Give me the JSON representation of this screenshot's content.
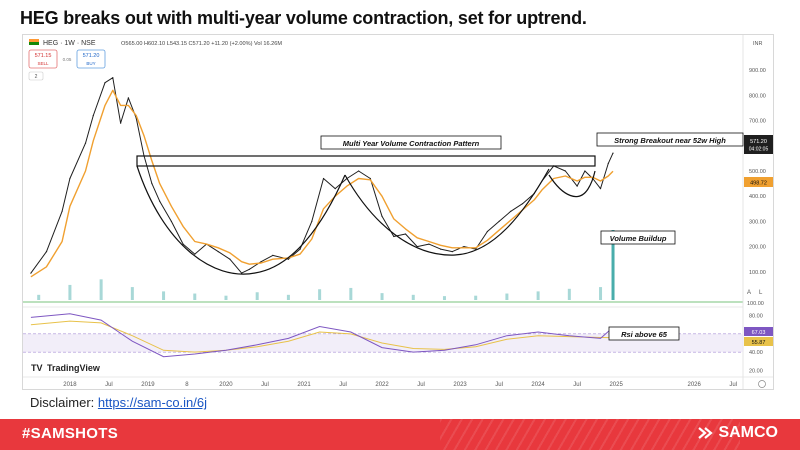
{
  "headline": "HEG breaks out with multi-year volume contraction, set for uptrend.",
  "disclaimer": {
    "label": "Disclaimer:",
    "link_text": "https://sam-co.in/6j"
  },
  "footer": {
    "hashtag": "#SAMSHOTS",
    "brand": "SAMCO"
  },
  "colors": {
    "price_line": "#1f1f1f",
    "ema": "#f0a030",
    "volume": "#3fa9a6",
    "rsi": "#7e57c2",
    "rsi_ma": "#e8c24a",
    "footer": "#e8383d",
    "ema_badge": "#f0a030",
    "rsi_badge": "#7e57c2"
  },
  "chart_data": {
    "type": "line",
    "symbol": "HEG · 1W · NSE",
    "ohlc_text": "O565.00 H602.10 L543.15 C571.20 +11.20 (+2.00%) Vol 16.26M",
    "sell_price": "571.15",
    "sell_label": "SELL",
    "spread": "0.05",
    "buy_price": "571.20",
    "buy_label": "BUY",
    "indicator_count": "2",
    "currency": "INR",
    "x_ticks": [
      "2018",
      "Jul",
      "2019",
      "8",
      "2020",
      "Jul",
      "2021",
      "Jul",
      "2022",
      "Jul",
      "2023",
      "Jul",
      "2024",
      "Jul",
      "2025",
      "2026",
      "Jul"
    ],
    "y_ticks": [
      "900.00",
      "800.00",
      "700.00",
      "600.00",
      "500.00",
      "400.00",
      "300.00",
      "200.00",
      "100.00"
    ],
    "ylim": [
      0,
      960
    ],
    "x": [
      2017.5,
      2017.7,
      2017.9,
      2018.0,
      2018.2,
      2018.3,
      2018.45,
      2018.55,
      2018.65,
      2018.75,
      2018.85,
      2018.95,
      2019.05,
      2019.15,
      2019.3,
      2019.45,
      2019.6,
      2019.75,
      2019.9,
      2020.05,
      2020.2,
      2020.3,
      2020.45,
      2020.6,
      2020.8,
      2020.95,
      2021.1,
      2021.25,
      2021.4,
      2021.55,
      2021.7,
      2021.85,
      2022.0,
      2022.15,
      2022.3,
      2022.45,
      2022.6,
      2022.75,
      2022.9,
      2023.05,
      2023.2,
      2023.35,
      2023.5,
      2023.65,
      2023.8,
      2023.95,
      2024.05,
      2024.2,
      2024.35,
      2024.5,
      2024.6,
      2024.7,
      2024.8,
      2024.9,
      2024.96
    ],
    "series": [
      {
        "values": [
          95,
          180,
          340,
          470,
          610,
          720,
          850,
          870,
          690,
          790,
          710,
          560,
          450,
          380,
          300,
          210,
          170,
          210,
          180,
          150,
          95,
          110,
          140,
          165,
          150,
          190,
          300,
          470,
          430,
          470,
          500,
          470,
          320,
          240,
          250,
          200,
          210,
          190,
          180,
          200,
          190,
          260,
          300,
          340,
          370,
          410,
          460,
          520,
          500,
          440,
          500,
          470,
          430,
          530,
          571
        ]
      },
      {
        "values": [
          80,
          120,
          220,
          360,
          500,
          620,
          760,
          820,
          760,
          760,
          720,
          640,
          540,
          450,
          360,
          280,
          220,
          210,
          195,
          175,
          140,
          130,
          135,
          150,
          155,
          170,
          230,
          350,
          400,
          440,
          470,
          465,
          400,
          310,
          270,
          235,
          220,
          205,
          195,
          195,
          195,
          225,
          265,
          305,
          345,
          385,
          425,
          470,
          480,
          460,
          475,
          475,
          460,
          480,
          499
        ]
      }
    ],
    "volume": {
      "x": [
        2017.6,
        2018.0,
        2018.4,
        2018.8,
        2019.2,
        2019.6,
        2020.0,
        2020.4,
        2020.8,
        2021.2,
        2021.6,
        2022.0,
        2022.4,
        2022.8,
        2023.2,
        2023.6,
        2024.0,
        2024.4,
        2024.8,
        2024.96
      ],
      "values": [
        1.2,
        3.5,
        4.8,
        3.0,
        2.0,
        1.5,
        1.0,
        1.8,
        1.2,
        2.5,
        2.8,
        1.6,
        1.2,
        0.9,
        1.0,
        1.5,
        2.0,
        2.6,
        3.0,
        16.26
      ]
    },
    "rsi": {
      "y_ticks": [
        "80.00",
        "60.00",
        "40.00",
        "20.00"
      ],
      "band": [
        40,
        60
      ],
      "x": [
        2017.5,
        2018.0,
        2018.4,
        2018.8,
        2019.2,
        2019.6,
        2020.0,
        2020.4,
        2020.8,
        2021.2,
        2021.6,
        2022.0,
        2022.4,
        2022.8,
        2023.2,
        2023.6,
        2024.0,
        2024.4,
        2024.8,
        2024.96
      ],
      "values": [
        78,
        82,
        75,
        52,
        35,
        38,
        42,
        48,
        55,
        68,
        62,
        45,
        40,
        42,
        48,
        58,
        62,
        58,
        55,
        67.03
      ],
      "ma": [
        70,
        74,
        72,
        58,
        42,
        40,
        42,
        46,
        52,
        62,
        60,
        50,
        44,
        43,
        46,
        54,
        58,
        57,
        56,
        55.87
      ]
    },
    "price_badge": "571.20",
    "price_badge_time": "04:02:05",
    "ema_badge": "498.72",
    "rsi_value": "67.03",
    "rsi_ma_value": "55.87",
    "annotations": {
      "pattern": "Multi Year Volume Contraction Pattern",
      "breakout": "Strong Breakout near 52w High",
      "volume": "Volume Buildup",
      "rsi": "Rsi above 65"
    },
    "watermark": "TradingView",
    "volume_axis_tick": "100.00",
    "price_scale_mode": "A",
    "price_scale_log": "L"
  }
}
